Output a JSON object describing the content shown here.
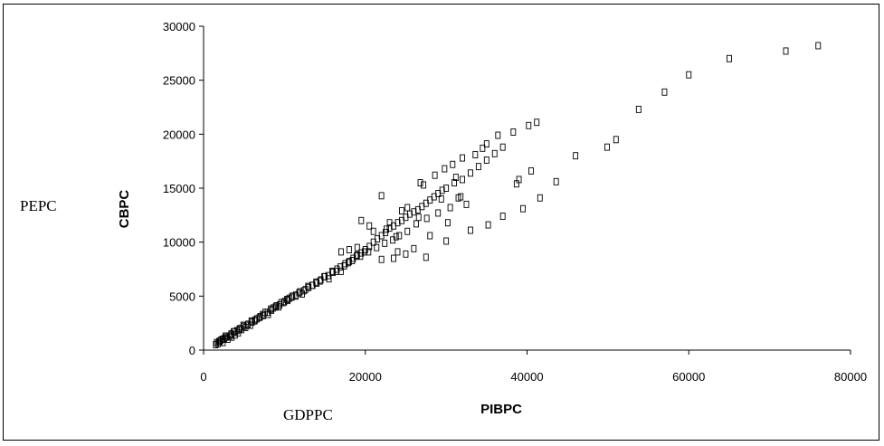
{
  "labels": {
    "left_overlay": "PEPC",
    "bottom_overlay": "GDPPC"
  },
  "chart_data": {
    "type": "scatter",
    "title": "",
    "xlabel": "PIBPC",
    "ylabel": "CBPC",
    "xlim": [
      0,
      80000
    ],
    "ylim": [
      0,
      30000
    ],
    "xticks": [
      0,
      20000,
      40000,
      60000,
      80000
    ],
    "yticks": [
      0,
      5000,
      10000,
      15000,
      20000,
      25000,
      30000
    ],
    "grid": false,
    "legend": "none",
    "marker": "hollow-square",
    "series": [
      {
        "points": [
          [
            1500,
            500
          ],
          [
            1600,
            700
          ],
          [
            1800,
            600
          ],
          [
            2000,
            800
          ],
          [
            2100,
            900
          ],
          [
            2300,
            1000
          ],
          [
            2400,
            700
          ],
          [
            2600,
            1100
          ],
          [
            2800,
            1200
          ],
          [
            3000,
            1000
          ],
          [
            3200,
            1300
          ],
          [
            3400,
            1500
          ],
          [
            3500,
            1200
          ],
          [
            3700,
            1700
          ],
          [
            3900,
            1400
          ],
          [
            4100,
            1800
          ],
          [
            4300,
            1600
          ],
          [
            4500,
            2000
          ],
          [
            4700,
            1900
          ],
          [
            5000,
            2200
          ],
          [
            5200,
            2100
          ],
          [
            5500,
            2400
          ],
          [
            5800,
            2300
          ],
          [
            6000,
            2600
          ],
          [
            6300,
            2700
          ],
          [
            6600,
            2900
          ],
          [
            7000,
            3100
          ],
          [
            7300,
            3300
          ],
          [
            7600,
            3500
          ],
          [
            8000,
            3300
          ],
          [
            8300,
            3800
          ],
          [
            8600,
            3900
          ],
          [
            9000,
            4100
          ],
          [
            9300,
            4000
          ],
          [
            9600,
            4400
          ],
          [
            10000,
            4500
          ],
          [
            10300,
            4700
          ],
          [
            10600,
            4800
          ],
          [
            11000,
            5000
          ],
          [
            11400,
            5100
          ],
          [
            11800,
            5300
          ],
          [
            12200,
            5200
          ],
          [
            12600,
            5600
          ],
          [
            13000,
            5800
          ],
          [
            13500,
            6000
          ],
          [
            14000,
            6200
          ],
          [
            14500,
            6500
          ],
          [
            15000,
            6800
          ],
          [
            15500,
            6600
          ],
          [
            16000,
            7200
          ],
          [
            16500,
            7500
          ],
          [
            17000,
            7300
          ],
          [
            17500,
            8000
          ],
          [
            18000,
            8200
          ],
          [
            18500,
            8500
          ],
          [
            19000,
            8800
          ],
          [
            19500,
            9000
          ],
          [
            20000,
            9300
          ],
          [
            20500,
            9600
          ],
          [
            21000,
            10000
          ],
          [
            21500,
            10300
          ],
          [
            22000,
            10600
          ],
          [
            22500,
            10900
          ],
          [
            23000,
            11300
          ],
          [
            23500,
            11500
          ],
          [
            24000,
            11800
          ],
          [
            24500,
            12000
          ],
          [
            25000,
            12300
          ],
          [
            25500,
            12600
          ],
          [
            26000,
            12800
          ],
          [
            26500,
            13000
          ],
          [
            27000,
            13300
          ],
          [
            27500,
            13600
          ],
          [
            28000,
            13900
          ],
          [
            28500,
            14200
          ],
          [
            29000,
            14500
          ],
          [
            29500,
            14800
          ],
          [
            30000,
            15000
          ],
          [
            31000,
            15500
          ],
          [
            32000,
            15800
          ],
          [
            33000,
            16400
          ],
          [
            34000,
            17000
          ],
          [
            35000,
            17600
          ],
          [
            36000,
            18200
          ],
          [
            37000,
            18800
          ],
          [
            34500,
            18700
          ],
          [
            35000,
            19100
          ],
          [
            36400,
            19900
          ],
          [
            38300,
            20200
          ],
          [
            40200,
            20800
          ],
          [
            41200,
            21100
          ],
          [
            40500,
            16600
          ],
          [
            39000,
            15800
          ],
          [
            38700,
            15400
          ],
          [
            39500,
            13100
          ],
          [
            41600,
            14100
          ],
          [
            43600,
            15600
          ],
          [
            46000,
            18000
          ],
          [
            49900,
            18800
          ],
          [
            51000,
            19500
          ],
          [
            53800,
            22300
          ],
          [
            57000,
            23900
          ],
          [
            60000,
            25500
          ],
          [
            65000,
            27000
          ],
          [
            72000,
            27700
          ],
          [
            76000,
            28200
          ],
          [
            37000,
            12400
          ],
          [
            35200,
            11600
          ],
          [
            33000,
            11100
          ],
          [
            30000,
            10100
          ],
          [
            27500,
            8600
          ],
          [
            25000,
            8900
          ],
          [
            23500,
            8500
          ],
          [
            22000,
            8400
          ],
          [
            24000,
            9100
          ],
          [
            26000,
            9400
          ],
          [
            28000,
            10600
          ],
          [
            30500,
            13200
          ],
          [
            31500,
            14100
          ],
          [
            32500,
            13500
          ],
          [
            19500,
            12000
          ],
          [
            20500,
            11500
          ],
          [
            22000,
            14300
          ],
          [
            23000,
            11800
          ],
          [
            24500,
            12900
          ],
          [
            25200,
            13200
          ],
          [
            26800,
            15500
          ],
          [
            27200,
            15300
          ],
          [
            28600,
            16200
          ],
          [
            29800,
            16800
          ],
          [
            30800,
            17200
          ],
          [
            31200,
            16000
          ],
          [
            32000,
            17800
          ],
          [
            33600,
            18100
          ],
          [
            29000,
            12700
          ],
          [
            27600,
            12200
          ],
          [
            26300,
            11700
          ],
          [
            25200,
            11000
          ],
          [
            24200,
            10600
          ],
          [
            23400,
            10200
          ],
          [
            22400,
            9900
          ],
          [
            21400,
            9500
          ],
          [
            20400,
            9100
          ],
          [
            19400,
            8700
          ],
          [
            18400,
            8300
          ],
          [
            17400,
            7800
          ],
          [
            16400,
            7300
          ],
          [
            15400,
            6900
          ],
          [
            14400,
            6400
          ],
          [
            13400,
            6000
          ],
          [
            12400,
            5500
          ],
          [
            11400,
            5000
          ],
          [
            10400,
            4600
          ],
          [
            9400,
            4200
          ],
          [
            8400,
            3700
          ],
          [
            7400,
            3200
          ],
          [
            6400,
            2800
          ],
          [
            5400,
            2300
          ],
          [
            4400,
            1900
          ],
          [
            3400,
            1400
          ],
          [
            2400,
            1000
          ],
          [
            1900,
            800
          ],
          [
            2700,
            1300
          ],
          [
            3800,
            1700
          ],
          [
            4900,
            2300
          ],
          [
            5900,
            2700
          ],
          [
            6900,
            3000
          ],
          [
            7900,
            3500
          ],
          [
            8900,
            4000
          ],
          [
            9900,
            4400
          ],
          [
            10900,
            4900
          ],
          [
            11900,
            5400
          ],
          [
            12900,
            5900
          ],
          [
            13900,
            6300
          ],
          [
            14900,
            6800
          ],
          [
            15900,
            7300
          ],
          [
            16900,
            7700
          ],
          [
            17900,
            8100
          ],
          [
            18900,
            8700
          ],
          [
            19900,
            9100
          ],
          [
            18000,
            9300
          ],
          [
            17000,
            9100
          ],
          [
            19000,
            9500
          ],
          [
            21000,
            11000
          ],
          [
            22600,
            11200
          ],
          [
            23800,
            10500
          ],
          [
            26600,
            12300
          ],
          [
            29400,
            14000
          ],
          [
            31800,
            14200
          ],
          [
            30200,
            11800
          ]
        ]
      }
    ]
  }
}
